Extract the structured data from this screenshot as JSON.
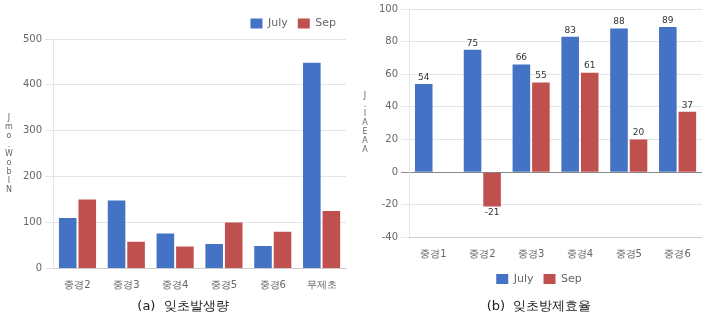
{
  "chart_data": [
    {
      "type": "bar",
      "title": "(a)  잊초발생량",
      "ylabel": "J\nm\no\n.\nW\no\nb\nI\nN",
      "categories": [
        "중경2",
        "중경3",
        "중경4",
        "중경5",
        "중경6",
        "무제초"
      ],
      "series": [
        {
          "name": "July",
          "color": "#4472C4",
          "values": [
            110,
            148,
            76,
            53,
            49,
            448
          ]
        },
        {
          "name": "Sep",
          "color": "#C0504D",
          "values": [
            150,
            58,
            48,
            100,
            80,
            125
          ]
        }
      ],
      "ylim": [
        0,
        500
      ],
      "yticks": [
        0,
        100,
        200,
        300,
        400,
        500
      ],
      "grid": true,
      "legend": "upper right"
    },
    {
      "type": "bar",
      "title": "(b)  잊초방제효율",
      "ylabel": "J\n.\nI\nA\nE\nA\nA",
      "categories": [
        "중경1",
        "중경2",
        "중경3",
        "중경4",
        "중경5",
        "중경6"
      ],
      "series": [
        {
          "name": "July",
          "color": "#4472C4",
          "values": [
            54,
            75,
            66,
            83,
            88,
            89
          ]
        },
        {
          "name": "Sep",
          "color": "#C0504D",
          "values": [
            null,
            -21,
            55,
            61,
            20,
            37
          ]
        }
      ],
      "ylim": [
        -40,
        100
      ],
      "yticks": [
        -40,
        -20,
        0,
        20,
        40,
        60,
        80,
        100
      ],
      "grid": true,
      "data_labels": true,
      "legend": "lower center"
    }
  ]
}
